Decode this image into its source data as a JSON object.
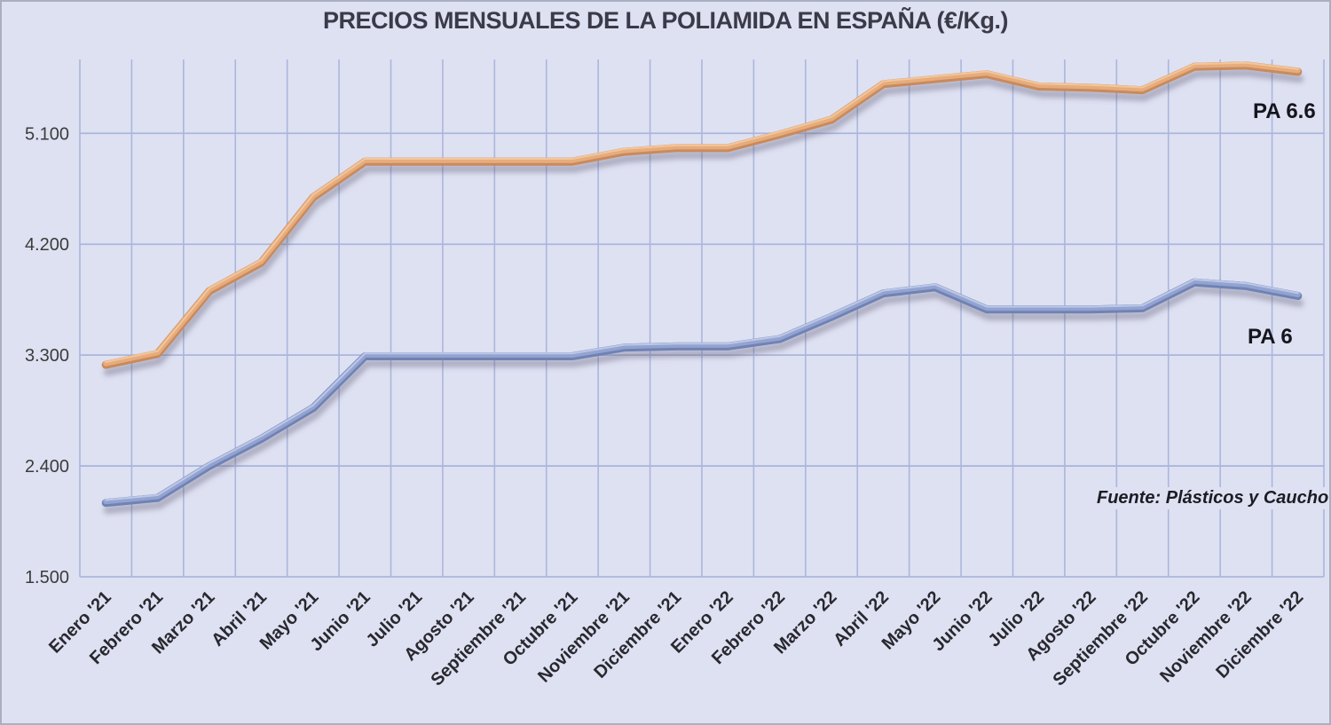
{
  "title": "PRECIOS MENSUALES DE LA POLIAMIDA EN ESPAÑA (€/Kg.)",
  "source_note": "Fuente: Plásticos y Caucho",
  "colors": {
    "background": "#dee1f2",
    "gridline": "#abb6dc",
    "frame_border": "#a9aec0",
    "title_text": "#3a3a49",
    "axis_text": "#3c3c3c",
    "pa66_line": "#df9c63",
    "pa6_line": "#8799c9"
  },
  "chart_data": {
    "type": "line",
    "title": "PRECIOS MENSUALES DE LA POLIAMIDA EN ESPAÑA (€/Kg.)",
    "source": "Fuente: Plásticos y Caucho",
    "categories": [
      "Enero '21",
      "Febrero '21",
      "Marzo '21",
      "Abril '21",
      "Mayo '21",
      "Junio '21",
      "Julio '21",
      "Agosto '21",
      "Septiembre '21",
      "Octubre '21",
      "Noviembre '21",
      "Diciembre '21",
      "Enero '22",
      "Febrero '22",
      "Marzo '22",
      "Abril '22",
      "Mayo '22",
      "Junio '22",
      "Julio '22",
      "Agosto '22",
      "Septiembre '22",
      "Octubre '22",
      "Noviembre '22",
      "Diciembre '22"
    ],
    "series": [
      {
        "name": "PA 6.6",
        "color_main": "#d99a60",
        "color_dark": "#c98a5c",
        "color_mid": "#e7ac7c",
        "color_highlight": "#f3c9a0",
        "values": [
          3220,
          3310,
          3820,
          4050,
          4580,
          4870,
          4870,
          4870,
          4870,
          4870,
          4950,
          4980,
          4980,
          5090,
          5210,
          5500,
          5540,
          5580,
          5480,
          5470,
          5450,
          5640,
          5650,
          5600
        ]
      },
      {
        "name": "PA 6",
        "color_main": "#8799c9",
        "color_dark": "#7082b4",
        "color_mid": "#93a3d1",
        "color_highlight": "#c2cce8",
        "values": [
          2100,
          2140,
          2400,
          2620,
          2870,
          3290,
          3290,
          3290,
          3290,
          3290,
          3360,
          3370,
          3370,
          3430,
          3610,
          3800,
          3850,
          3670,
          3670,
          3670,
          3680,
          3890,
          3860,
          3780
        ]
      }
    ],
    "ylim": [
      1500,
      5700
    ],
    "yticks": [
      {
        "value": 1500,
        "label": "1.500"
      },
      {
        "value": 2400,
        "label": "2.400"
      },
      {
        "value": 3300,
        "label": "3.300"
      },
      {
        "value": 4200,
        "label": "4.200"
      },
      {
        "value": 5100,
        "label": "5.100"
      }
    ],
    "grid": true,
    "x_label_rotation": -45,
    "legend_position": "inline-end-of-line"
  }
}
